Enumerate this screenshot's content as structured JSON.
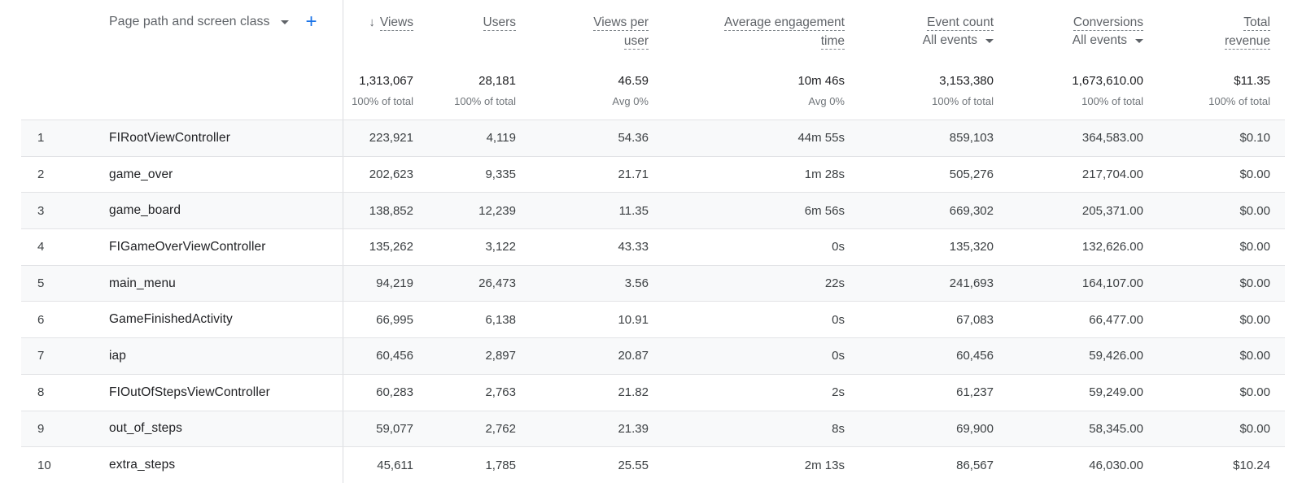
{
  "table": {
    "dimension_header": "Page path and screen class",
    "columns": [
      {
        "key": "views",
        "label": [
          "Views"
        ],
        "sorted": true
      },
      {
        "key": "users",
        "label": [
          "Users"
        ]
      },
      {
        "key": "views_per_user",
        "label": [
          "Views per",
          "user"
        ]
      },
      {
        "key": "avg_engagement",
        "label": [
          "Average engagement",
          "time"
        ]
      },
      {
        "key": "event_count",
        "label": [
          "Event count"
        ],
        "filter": "All events"
      },
      {
        "key": "conversions",
        "label": [
          "Conversions"
        ],
        "filter": "All events"
      },
      {
        "key": "total_revenue",
        "label": [
          "Total",
          "revenue"
        ]
      }
    ],
    "totals": [
      {
        "value": "1,313,067",
        "sub": "100% of total"
      },
      {
        "value": "28,181",
        "sub": "100% of total"
      },
      {
        "value": "46.59",
        "sub": "Avg 0%"
      },
      {
        "value": "10m 46s",
        "sub": "Avg 0%"
      },
      {
        "value": "3,153,380",
        "sub": "100% of total"
      },
      {
        "value": "1,673,610.00",
        "sub": "100% of total"
      },
      {
        "value": "$11.35",
        "sub": "100% of total"
      }
    ],
    "rows": [
      {
        "rank": "1",
        "name": "FIRootViewController",
        "values": [
          "223,921",
          "4,119",
          "54.36",
          "44m 55s",
          "859,103",
          "364,583.00",
          "$0.10"
        ]
      },
      {
        "rank": "2",
        "name": "game_over",
        "values": [
          "202,623",
          "9,335",
          "21.71",
          "1m 28s",
          "505,276",
          "217,704.00",
          "$0.00"
        ]
      },
      {
        "rank": "3",
        "name": "game_board",
        "values": [
          "138,852",
          "12,239",
          "11.35",
          "6m 56s",
          "669,302",
          "205,371.00",
          "$0.00"
        ]
      },
      {
        "rank": "4",
        "name": "FIGameOverViewController",
        "values": [
          "135,262",
          "3,122",
          "43.33",
          "0s",
          "135,320",
          "132,626.00",
          "$0.00"
        ]
      },
      {
        "rank": "5",
        "name": "main_menu",
        "values": [
          "94,219",
          "26,473",
          "3.56",
          "22s",
          "241,693",
          "164,107.00",
          "$0.00"
        ]
      },
      {
        "rank": "6",
        "name": "GameFinishedActivity",
        "values": [
          "66,995",
          "6,138",
          "10.91",
          "0s",
          "67,083",
          "66,477.00",
          "$0.00"
        ]
      },
      {
        "rank": "7",
        "name": "iap",
        "values": [
          "60,456",
          "2,897",
          "20.87",
          "0s",
          "60,456",
          "59,426.00",
          "$0.00"
        ]
      },
      {
        "rank": "8",
        "name": "FIOutOfStepsViewController",
        "values": [
          "60,283",
          "2,763",
          "21.82",
          "2s",
          "61,237",
          "59,249.00",
          "$0.00"
        ]
      },
      {
        "rank": "9",
        "name": "out_of_steps",
        "values": [
          "59,077",
          "2,762",
          "21.39",
          "8s",
          "69,900",
          "58,345.00",
          "$0.00"
        ]
      },
      {
        "rank": "10",
        "name": "extra_steps",
        "values": [
          "45,611",
          "1,785",
          "25.55",
          "2m 13s",
          "86,567",
          "46,030.00",
          "$10.24"
        ]
      }
    ]
  }
}
